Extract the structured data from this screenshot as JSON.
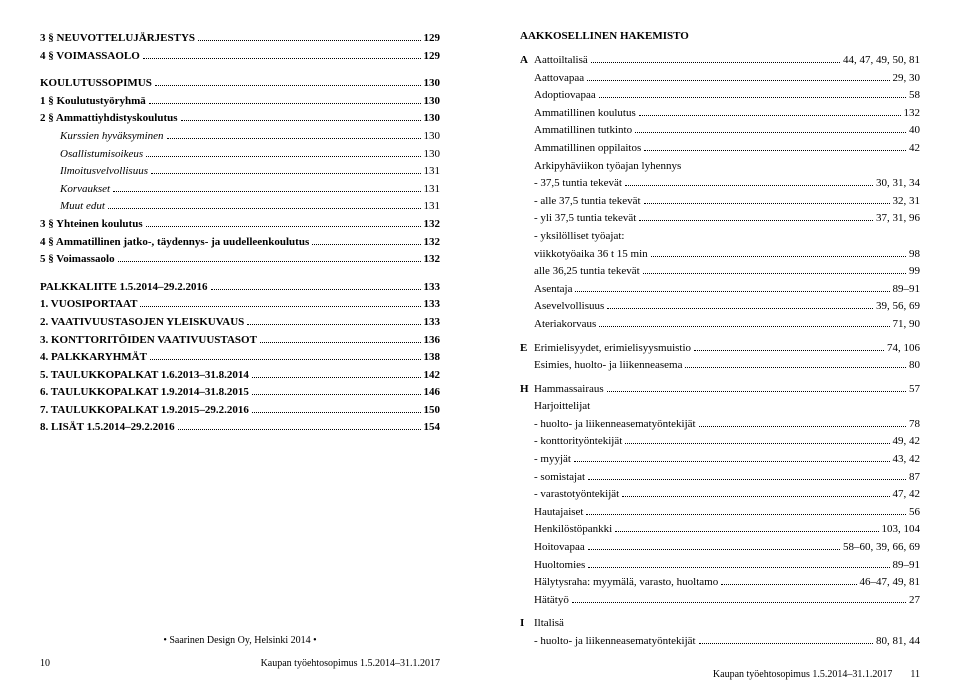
{
  "leftPage": {
    "toc": [
      {
        "label": "3 §  NEUVOTTELUJÄRJESTYS",
        "page": "129",
        "indent": 0,
        "bold": true
      },
      {
        "label": "4 §  VOIMASSAOLO",
        "page": "129",
        "indent": 0,
        "bold": true
      },
      {
        "gap": true
      },
      {
        "label": "KOULUTUSSOPIMUS",
        "page": "130",
        "indent": 0,
        "bold": true
      },
      {
        "label": "1 §  Koulutustyöryhmä",
        "page": "130",
        "indent": 0,
        "bold": true
      },
      {
        "label": "2 §  Ammattiyhdistyskoulutus",
        "page": "130",
        "indent": 0,
        "bold": true
      },
      {
        "label": "Kurssien hyväksyminen",
        "page": "130",
        "indent": 1,
        "italic": true
      },
      {
        "label": "Osallistumisoikeus",
        "page": "130",
        "indent": 1,
        "italic": true
      },
      {
        "label": "Ilmoitusvelvollisuus",
        "page": "131",
        "indent": 1,
        "italic": true
      },
      {
        "label": "Korvaukset",
        "page": "131",
        "indent": 1,
        "italic": true
      },
      {
        "label": "Muut edut",
        "page": "131",
        "indent": 1,
        "italic": true
      },
      {
        "label": "3 §  Yhteinen koulutus",
        "page": "132",
        "indent": 0,
        "bold": true
      },
      {
        "label": "4 §  Ammatillinen jatko-, täydennys- ja uudelleenkoulutus",
        "page": "132",
        "indent": 0,
        "bold": true
      },
      {
        "label": "5 §  Voimassaolo",
        "page": "132",
        "indent": 0,
        "bold": true
      },
      {
        "gap": true
      },
      {
        "label": "PALKKALIITE 1.5.2014–29.2.2016",
        "page": "133",
        "indent": 0,
        "bold": true
      },
      {
        "label": "1.  VUOSIPORTAAT",
        "page": "133",
        "indent": 0,
        "bold": true
      },
      {
        "label": "2.  VAATIVUUSTASOJEN YLEISKUVAUS",
        "page": "133",
        "indent": 0,
        "bold": true
      },
      {
        "label": "3.  KONTTORITÖIDEN VAATIVUUSTASOT",
        "page": "136",
        "indent": 0,
        "bold": true
      },
      {
        "label": "4.  PALKKARYHMÄT",
        "page": "138",
        "indent": 0,
        "bold": true
      },
      {
        "label": "5.  TAULUKKOPALKAT 1.6.2013–31.8.2014",
        "page": "142",
        "indent": 0,
        "bold": true
      },
      {
        "label": "6.  TAULUKKOPALKAT 1.9.2014–31.8.2015",
        "page": "146",
        "indent": 0,
        "bold": true
      },
      {
        "label": "7.  TAULUKKOPALKAT 1.9.2015–29.2.2016",
        "page": "150",
        "indent": 0,
        "bold": true
      },
      {
        "label": "8.  LISÄT 1.5.2014–29.2.2016",
        "page": "154",
        "indent": 0,
        "bold": true
      }
    ],
    "credit": "•  Saarinen Design Oy, Helsinki 2014  •",
    "footer": {
      "pageNum": "10",
      "text": "Kaupan työehtosopimus 1.5.2014–31.1.2017"
    }
  },
  "rightPage": {
    "heading": "AAKKOSELLINEN HAKEMISTO",
    "groups": [
      {
        "letter": "A",
        "lines": [
          {
            "label": "Aattoiltalisä",
            "page": "44, 47, 49, 50, 81"
          },
          {
            "label": "Aattovapaa",
            "page": "29, 30"
          },
          {
            "label": "Adoptiovapaa",
            "page": "58"
          },
          {
            "label": "Ammatillinen koulutus",
            "page": "132"
          },
          {
            "label": "Ammatillinen tutkinto",
            "page": "40"
          },
          {
            "label": "Ammatillinen oppilaitos",
            "page": "42"
          },
          {
            "label": "Arkipyhäviikon työajan lyhennys",
            "plain": true
          },
          {
            "label": "- 37,5 tuntia tekevät",
            "page": "30, 31, 34"
          },
          {
            "label": "- alle 37,5 tuntia tekevät",
            "page": "32, 31"
          },
          {
            "label": "- yli 37,5 tuntia tekevät",
            "page": "37, 31, 96"
          },
          {
            "label": "- yksilölliset työajat:",
            "plain": true
          },
          {
            "label": "  viikkotyöaika 36 t 15 min",
            "page": "98"
          },
          {
            "label": "  alle 36,25 tuntia tekevät",
            "page": "99"
          },
          {
            "label": "Asentaja",
            "page": "89–91"
          },
          {
            "label": "Asevelvollisuus",
            "page": "39, 56, 69"
          },
          {
            "label": "Ateriakorvaus",
            "page": "71, 90"
          }
        ]
      },
      {
        "letter": "E",
        "lines": [
          {
            "label": "Erimielisyydet, erimielisyysmuistio",
            "page": "74, 106"
          },
          {
            "label": "Esimies, huolto- ja liikenneasema",
            "page": "80"
          }
        ]
      },
      {
        "letter": "H",
        "lines": [
          {
            "label": "Hammassairaus",
            "page": "57"
          },
          {
            "label": "Harjoittelijat",
            "plain": true
          },
          {
            "label": "- huolto- ja liikenneasematyöntekijät",
            "page": "78"
          },
          {
            "label": "- konttorityöntekijät",
            "page": "49, 42"
          },
          {
            "label": "- myyjät",
            "page": "43, 42"
          },
          {
            "label": "- somistajat",
            "page": "87"
          },
          {
            "label": "- varastotyöntekijät",
            "page": "47, 42"
          },
          {
            "label": "Hautajaiset",
            "page": "56"
          },
          {
            "label": "Henkilöstöpankki",
            "page": "103, 104"
          },
          {
            "label": "Hoitovapaa",
            "page": "58–60, 39, 66, 69"
          },
          {
            "label": "Huoltomies",
            "page": "89–91"
          },
          {
            "label": "Hälytysraha: myymälä, varasto, huoltamo",
            "page": "46–47, 49, 81"
          },
          {
            "label": "Hätätyö",
            "page": "27"
          }
        ]
      },
      {
        "letter": "I",
        "lines": [
          {
            "label": "Iltalisä",
            "plain": true
          },
          {
            "label": "- huolto- ja liikenneasematyöntekijät",
            "page": "80, 81, 44"
          }
        ]
      }
    ],
    "footer": {
      "text": "Kaupan työehtosopimus 1.5.2014–31.1.2017",
      "pageNum": "11"
    }
  }
}
